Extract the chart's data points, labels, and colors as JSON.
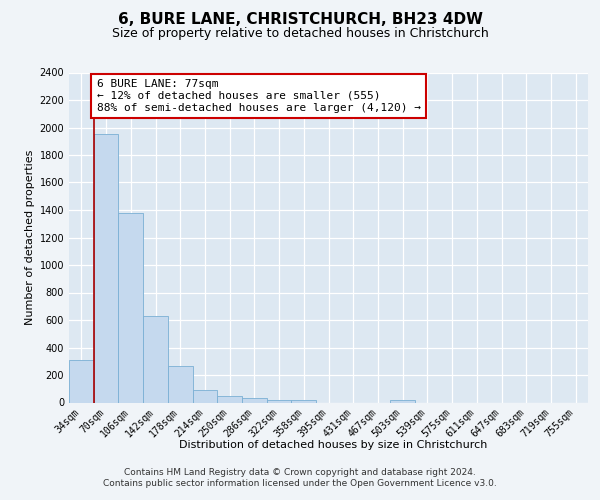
{
  "title": "6, BURE LANE, CHRISTCHURCH, BH23 4DW",
  "subtitle": "Size of property relative to detached houses in Christchurch",
  "xlabel": "Distribution of detached houses by size in Christchurch",
  "ylabel": "Number of detached properties",
  "footer_line1": "Contains HM Land Registry data © Crown copyright and database right 2024.",
  "footer_line2": "Contains public sector information licensed under the Open Government Licence v3.0.",
  "categories": [
    "34sqm",
    "70sqm",
    "106sqm",
    "142sqm",
    "178sqm",
    "214sqm",
    "250sqm",
    "286sqm",
    "322sqm",
    "358sqm",
    "395sqm",
    "431sqm",
    "467sqm",
    "503sqm",
    "539sqm",
    "575sqm",
    "611sqm",
    "647sqm",
    "683sqm",
    "719sqm",
    "755sqm"
  ],
  "values": [
    310,
    1950,
    1380,
    630,
    265,
    90,
    45,
    30,
    20,
    20,
    0,
    0,
    0,
    20,
    0,
    0,
    0,
    0,
    0,
    0,
    0
  ],
  "bar_color": "#c5d9ee",
  "bar_edge_color": "#7aafd4",
  "vline_x": 0.5,
  "vline_color": "#aa0000",
  "annotation_text": "6 BURE LANE: 77sqm\n← 12% of detached houses are smaller (555)\n88% of semi-detached houses are larger (4,120) →",
  "annotation_box_facecolor": "#ffffff",
  "annotation_box_edgecolor": "#cc0000",
  "ylim": [
    0,
    2400
  ],
  "yticks": [
    0,
    200,
    400,
    600,
    800,
    1000,
    1200,
    1400,
    1600,
    1800,
    2000,
    2200,
    2400
  ],
  "bg_color": "#f0f4f8",
  "plot_bg_color": "#dde8f2",
  "grid_color": "#ffffff",
  "title_fontsize": 11,
  "subtitle_fontsize": 9,
  "xlabel_fontsize": 8,
  "ylabel_fontsize": 8,
  "tick_fontsize": 7,
  "footer_fontsize": 6.5,
  "ann_fontsize": 8
}
